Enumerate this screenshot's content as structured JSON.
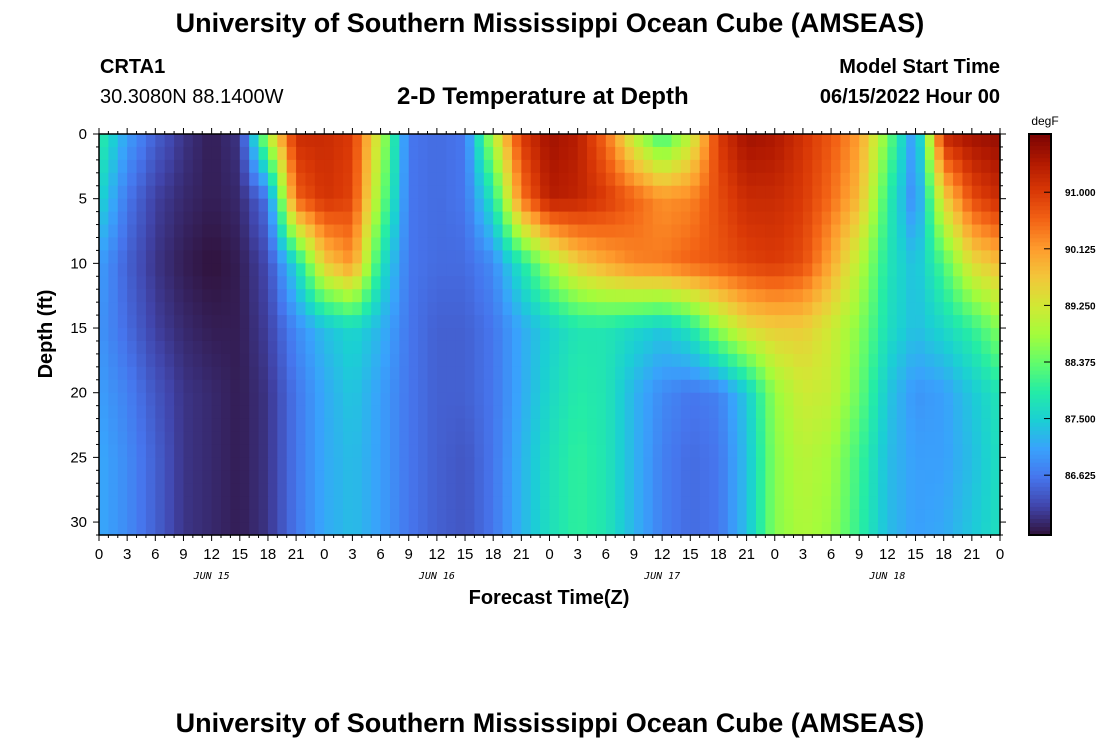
{
  "header": {
    "title": "University of Southern Mississippi Ocean Cube (AMSEAS)",
    "station_id": "CRTA1",
    "coords": "30.3080N  88.1400W",
    "subtitle": "2-D Temperature at Depth",
    "model_start_label": "Model Start Time",
    "model_start_value": "06/15/2022 Hour 00"
  },
  "footer": {
    "title": "University of Southern Mississippi Ocean Cube (AMSEAS)"
  },
  "chart_data": {
    "type": "heatmap",
    "title": "2-D Temperature at Depth",
    "xlabel": "Forecast Time(Z)",
    "ylabel": "Depth (ft)",
    "x_range_hours": [
      0,
      96
    ],
    "x_tick_step_hours": 3,
    "x_tick_labels": [
      "0",
      "3",
      "6",
      "9",
      "12",
      "15",
      "18",
      "21",
      "0",
      "3",
      "6",
      "9",
      "12",
      "15",
      "18",
      "21",
      "0",
      "3",
      "6",
      "9",
      "12",
      "15",
      "18",
      "21",
      "0",
      "3",
      "6",
      "9",
      "12",
      "15",
      "18",
      "21",
      "0"
    ],
    "day_labels": [
      {
        "label": "JUN 15",
        "hour": 12
      },
      {
        "label": "JUN 16",
        "hour": 36
      },
      {
        "label": "JUN 17",
        "hour": 60
      },
      {
        "label": "JUN 18",
        "hour": 84
      }
    ],
    "y_range_ft": [
      0,
      31
    ],
    "y_ticks": [
      0,
      5,
      10,
      15,
      20,
      25,
      30
    ],
    "colorbar": {
      "unit": "degF",
      "range": [
        85.7,
        91.9
      ],
      "ticks": [
        "86.625",
        "87.500",
        "88.375",
        "89.250",
        "90.125",
        "91.000"
      ],
      "colormap": [
        "#30123b",
        "#4145ab",
        "#4675ed",
        "#39a2fc",
        "#1bcfd4",
        "#24eca6",
        "#61fc6c",
        "#a4fc3b",
        "#d1e834",
        "#f3c63a",
        "#fe9b2d",
        "#f36315",
        "#d93806",
        "#b11901",
        "#7a0403"
      ]
    },
    "depths_ft": [
      0,
      5,
      10,
      15,
      20,
      25,
      31
    ],
    "times_hours": [
      0,
      3,
      6,
      9,
      12,
      15,
      18,
      21,
      24,
      27,
      30,
      33,
      36,
      39,
      42,
      45,
      48,
      51,
      54,
      57,
      60,
      63,
      66,
      69,
      72,
      75,
      78,
      81,
      84,
      87,
      90,
      93,
      96
    ],
    "temperature_degF": [
      [
        88.0,
        87.0,
        86.4,
        86.0,
        85.8,
        86.0,
        89.0,
        91.2,
        91.2,
        91.0,
        89.0,
        86.6,
        86.5,
        86.6,
        89.0,
        91.0,
        91.6,
        91.4,
        90.5,
        89.0,
        88.0,
        89.0,
        91.0,
        91.6,
        91.5,
        91.1,
        90.7,
        90.1,
        88.5,
        86.8,
        91.3,
        91.6,
        91.7
      ],
      [
        87.6,
        86.6,
        86.1,
        85.9,
        85.8,
        85.9,
        86.6,
        90.6,
        91.1,
        90.9,
        88.6,
        86.6,
        86.5,
        86.6,
        87.8,
        90.4,
        91.4,
        91.3,
        91.0,
        90.6,
        90.2,
        90.3,
        90.8,
        91.2,
        91.2,
        91.0,
        90.5,
        89.8,
        88.0,
        86.7,
        89.5,
        90.8,
        91.2
      ],
      [
        87.0,
        86.4,
        86.0,
        85.8,
        85.7,
        85.8,
        86.2,
        87.6,
        89.6,
        90.2,
        87.8,
        86.6,
        86.5,
        86.5,
        86.8,
        87.8,
        88.8,
        89.6,
        90.0,
        90.3,
        90.4,
        90.6,
        90.7,
        90.9,
        91.0,
        90.8,
        90.0,
        89.0,
        87.8,
        87.3,
        88.2,
        89.4,
        89.8
      ],
      [
        86.9,
        86.5,
        86.1,
        85.9,
        85.8,
        85.8,
        86.1,
        86.8,
        87.3,
        87.6,
        87.2,
        86.6,
        86.4,
        86.4,
        86.6,
        87.1,
        87.5,
        87.8,
        87.8,
        87.6,
        87.4,
        87.8,
        88.7,
        89.4,
        89.6,
        89.6,
        89.2,
        88.6,
        87.7,
        87.3,
        87.6,
        88.0,
        88.6
      ],
      [
        87.0,
        86.7,
        86.3,
        86.0,
        85.9,
        85.8,
        86.0,
        86.6,
        87.1,
        87.4,
        87.0,
        86.6,
        86.4,
        86.4,
        86.6,
        87.1,
        87.6,
        87.9,
        87.8,
        87.2,
        86.8,
        86.6,
        86.7,
        87.4,
        88.7,
        89.2,
        89.1,
        88.4,
        87.4,
        86.9,
        87.0,
        87.4,
        87.8
      ],
      [
        87.1,
        86.8,
        86.4,
        86.0,
        85.9,
        85.8,
        86.0,
        86.6,
        87.1,
        87.3,
        87.0,
        86.6,
        86.4,
        86.3,
        86.6,
        87.2,
        87.7,
        88.0,
        87.8,
        87.2,
        86.7,
        86.5,
        86.6,
        87.3,
        88.6,
        89.0,
        88.8,
        88.1,
        87.3,
        87.0,
        87.0,
        87.3,
        87.7
      ],
      [
        87.1,
        86.8,
        86.4,
        86.0,
        85.9,
        85.8,
        86.0,
        86.6,
        87.1,
        87.3,
        87.0,
        86.6,
        86.4,
        86.3,
        86.6,
        87.2,
        87.7,
        88.0,
        87.8,
        87.2,
        86.7,
        86.5,
        86.6,
        87.3,
        88.6,
        88.9,
        88.7,
        88.0,
        87.3,
        87.0,
        87.1,
        87.4,
        87.7
      ]
    ]
  }
}
